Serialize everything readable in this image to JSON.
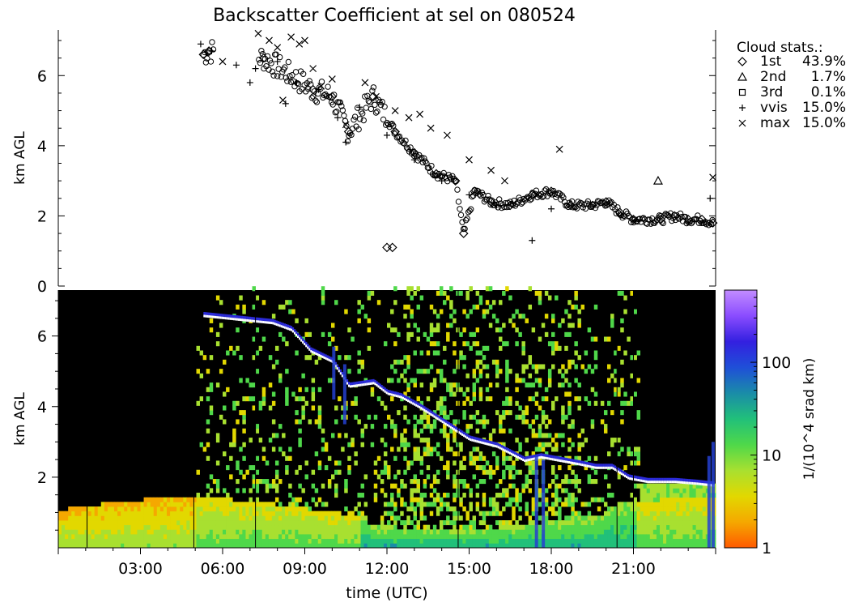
{
  "title": "Backscatter Coefficient at sel on 080524",
  "legend": {
    "header": "Cloud stats.:",
    "entries": [
      {
        "marker": "diamond",
        "label": "1st",
        "value": "43.9%"
      },
      {
        "marker": "triangle",
        "label": "2nd",
        "value": "1.7%"
      },
      {
        "marker": "square",
        "label": "3rd",
        "value": "0.1%"
      },
      {
        "marker": "plus",
        "label": "vvis",
        "value": "15.0%"
      },
      {
        "marker": "cross",
        "label": "max",
        "value": "15.0%"
      }
    ]
  },
  "colorbar": {
    "label": "1/(10^4 srad km)",
    "scale": "log",
    "range": [
      1,
      600
    ],
    "ticks": [
      {
        "value": 1,
        "label": "1"
      },
      {
        "value": 10,
        "label": "10"
      },
      {
        "value": 100,
        "label": "100"
      }
    ],
    "colors": [
      "#ff5a00",
      "#f5a800",
      "#e2d800",
      "#a8e030",
      "#4fd84a",
      "#21c07a",
      "#1a8ca8",
      "#1f4fd8",
      "#3320e0",
      "#8a4cff",
      "#c28cff"
    ]
  },
  "chart_data": [
    {
      "type": "scatter",
      "name": "cloud-base-heights",
      "xlabel": "",
      "ylabel": "km AGL",
      "xlim": [
        0,
        24
      ],
      "ylim": [
        0,
        7.3
      ],
      "yticks": [
        0,
        2,
        4,
        6
      ],
      "series": [
        {
          "name": "1st",
          "marker": "diamond",
          "x": [
            5.3,
            5.5,
            7.5,
            9.3,
            10.0,
            10.6,
            11.5,
            12.3,
            13.0,
            13.8,
            14.5,
            15.2,
            15.8,
            16.5,
            17.3,
            18.0,
            18.7,
            19.5,
            20.0,
            20.5,
            21.0,
            22.0,
            22.5,
            23.0,
            23.5,
            23.9,
            12.0,
            12.2,
            14.8
          ],
          "y": [
            6.6,
            6.7,
            6.5,
            5.6,
            5.4,
            4.4,
            5.4,
            4.4,
            3.8,
            3.2,
            3.0,
            2.7,
            2.4,
            2.3,
            2.6,
            2.7,
            2.3,
            2.3,
            2.4,
            2.1,
            1.9,
            1.9,
            2.0,
            1.9,
            1.9,
            1.8,
            1.1,
            1.1,
            1.5
          ]
        },
        {
          "name": "2nd",
          "marker": "triangle",
          "x": [
            21.9
          ],
          "y": [
            3.0
          ]
        },
        {
          "name": "3rd",
          "marker": "square",
          "x": [],
          "y": []
        },
        {
          "name": "vvis",
          "marker": "plus",
          "x": [
            5.2,
            5.6,
            6.5,
            7.0,
            7.2,
            8.0,
            8.3,
            8.7,
            9.5,
            10.2,
            10.5,
            11.0,
            12.0,
            13.0,
            14.0,
            15.0,
            16.0,
            17.3,
            18.0,
            23.8
          ],
          "y": [
            6.9,
            6.7,
            6.3,
            5.8,
            6.2,
            6.4,
            5.2,
            5.8,
            5.6,
            4.8,
            4.1,
            5.1,
            4.3,
            3.6,
            3.0,
            2.6,
            2.3,
            1.3,
            2.2,
            2.5
          ]
        },
        {
          "name": "max",
          "marker": "cross",
          "x": [
            6.0,
            7.3,
            7.7,
            8.0,
            8.2,
            8.5,
            8.8,
            9.0,
            9.3,
            9.6,
            10.0,
            10.5,
            11.2,
            11.6,
            12.3,
            12.8,
            13.2,
            13.6,
            14.2,
            15.0,
            15.8,
            16.3,
            17.5,
            18.3,
            23.9
          ],
          "y": [
            6.4,
            7.2,
            7.0,
            6.8,
            5.3,
            7.1,
            6.9,
            7.0,
            6.2,
            5.7,
            5.9,
            4.6,
            5.8,
            5.4,
            5.0,
            4.8,
            4.9,
            4.5,
            4.3,
            3.6,
            3.3,
            3.0,
            2.6,
            3.9,
            3.1
          ]
        }
      ]
    },
    {
      "type": "heatmap",
      "name": "backscatter-coefficient",
      "xlabel": "time (UTC)",
      "ylabel": "km AGL",
      "xlim": [
        0,
        24
      ],
      "ylim": [
        0,
        7.3
      ],
      "xticks": [
        "03:00",
        "06:00",
        "09:00",
        "12:00",
        "15:00",
        "18:00",
        "21:00"
      ],
      "xtick_hours": [
        3,
        6,
        9,
        12,
        15,
        18,
        21
      ],
      "yticks": [
        2,
        4,
        6
      ],
      "cloud_layer": {
        "x": [
          5.3,
          7.8,
          8.5,
          9.2,
          10.0,
          10.6,
          11.5,
          12.0,
          12.5,
          13.2,
          14.0,
          15.0,
          16.0,
          17.0,
          17.6,
          18.3,
          19.0,
          19.6,
          20.2,
          20.8,
          21.5,
          22.5,
          23.3,
          23.9
        ],
        "y": [
          6.6,
          6.4,
          6.2,
          5.6,
          5.3,
          4.6,
          4.7,
          4.4,
          4.3,
          4.0,
          3.6,
          3.1,
          2.9,
          2.5,
          2.6,
          2.5,
          2.4,
          2.3,
          2.3,
          2.0,
          1.9,
          1.9,
          1.85,
          1.8
        ]
      }
    }
  ]
}
